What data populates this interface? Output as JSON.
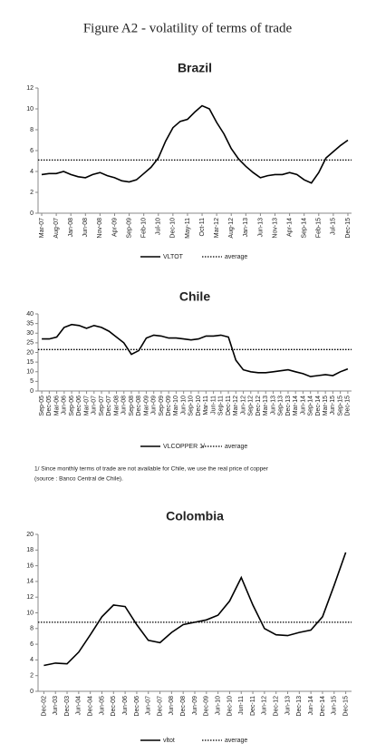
{
  "title": "Figure A2 - volatility of terms of trade",
  "note": [
    "1/ Since monthly terms of trade are not available for Chile, we use the real price of copper",
    "(source : Banco Central de Chile)."
  ],
  "chart_data": [
    {
      "type": "line",
      "title": "Brazil",
      "categories": [
        "Mar-07",
        null,
        "Aug-07",
        null,
        "Jan-08",
        null,
        "Jun-08",
        null,
        "Nov-08",
        null,
        "Apr-09",
        null,
        "Sep-09",
        null,
        "Feb-10",
        null,
        "Jul-10",
        null,
        "Dec-10",
        null,
        "May-11",
        null,
        "Oct-11",
        null,
        "Mar-12",
        null,
        "Aug-12",
        null,
        "Jan-13",
        null,
        "Jun-13",
        null,
        "Nov-13",
        null,
        "Apr-14",
        null,
        "Sep-14",
        null,
        "Feb-15",
        null,
        "Jul-15",
        null,
        "Dec-15"
      ],
      "series": [
        {
          "name": "VLTOT",
          "color": "#000000",
          "values": [
            3.7,
            3.8,
            3.8,
            4.0,
            3.7,
            3.5,
            3.4,
            3.7,
            3.9,
            3.6,
            3.4,
            3.1,
            3.0,
            3.2,
            3.8,
            4.4,
            5.3,
            6.9,
            8.2,
            8.8,
            9.0,
            9.7,
            10.3,
            10.0,
            8.7,
            7.6,
            6.2,
            5.2,
            4.5,
            3.9,
            3.4,
            3.6,
            3.7,
            3.7,
            3.9,
            3.7,
            3.2,
            2.9,
            3.9,
            5.3,
            5.9,
            6.5,
            7.0
          ]
        }
      ],
      "average": {
        "name": "average",
        "value": 5.1
      },
      "ylim": [
        0,
        12
      ],
      "yticks": [
        0,
        2,
        4,
        6,
        8,
        10,
        12
      ]
    },
    {
      "type": "line",
      "title": "Chile",
      "categories": [
        "Sep-05",
        "Dec-05",
        "Mar-06",
        "Jun-06",
        "Sep-06",
        "Dec-06",
        "Mar-07",
        "Jun-07",
        "Sep-07",
        "Dec-07",
        "Mar-08",
        "Jun-08",
        "Sep-08",
        "Dec-08",
        "Mar-09",
        "Jun-09",
        "Sep-09",
        "Dec-09",
        "Mar-10",
        "Jun-10",
        "Sep-10",
        "Dec-10",
        "Mar-11",
        "Jun-11",
        "Sep-11",
        "Dec-11",
        "Mar-12",
        "Jun-12",
        "Sep-12",
        "Dec-12",
        "Mar-13",
        "Jun-13",
        "Sep-13",
        "Dec-13",
        "Mar-14",
        "Jun-14",
        "Sep-14",
        "Dec-14",
        "Mar-15",
        "Jun-15",
        "Sep-15",
        "Dec-15"
      ],
      "series": [
        {
          "name": "VLCOPPER 1/",
          "color": "#000000",
          "values": [
            27,
            27,
            28,
            33,
            34.5,
            34,
            32.5,
            34,
            33,
            31,
            28,
            25,
            19,
            21,
            27.5,
            29,
            28.5,
            27.5,
            27.5,
            27,
            26.5,
            27,
            28.5,
            28.5,
            29,
            28,
            16,
            11,
            10,
            9.5,
            9.5,
            10,
            10.5,
            11,
            10,
            9,
            7.5,
            8,
            8.5,
            8,
            10,
            11.5
          ]
        }
      ],
      "average": {
        "name": "average",
        "value": 21.5
      },
      "ylim": [
        0,
        40
      ],
      "yticks": [
        0,
        5,
        10,
        15,
        20,
        25,
        30,
        35,
        40
      ]
    },
    {
      "type": "line",
      "title": "Colombia",
      "categories": [
        "Dec-02",
        "Jun-03",
        "Dec-03",
        "Jun-04",
        "Dec-04",
        "Jun-05",
        "Dec-05",
        "Jun-06",
        "Dec-06",
        "Jun-07",
        "Dec-07",
        "Jun-08",
        "Dec-08",
        "Jun-09",
        "Dec-09",
        "Jun-10",
        "Dec-10",
        "Jun-11",
        "Dec-11",
        "Jun-12",
        "Dec-12",
        "Jun-13",
        "Dec-13",
        "Jun-14",
        "Dec-14",
        "Jun-15",
        "Dec-15"
      ],
      "series": [
        {
          "name": "vltot",
          "color": "#000000",
          "values": [
            3.3,
            3.6,
            3.5,
            5.0,
            7.2,
            9.5,
            11.0,
            10.8,
            8.5,
            6.5,
            6.2,
            7.5,
            8.5,
            8.8,
            9.1,
            9.7,
            11.5,
            14.5,
            11.0,
            8.0,
            7.2,
            7.1,
            7.5,
            7.8,
            9.5,
            13.5,
            17.7
          ]
        }
      ],
      "average": {
        "name": "average",
        "value": 8.8
      },
      "ylim": [
        0,
        20
      ],
      "yticks": [
        0,
        2,
        4,
        6,
        8,
        10,
        12,
        14,
        16,
        18,
        20
      ]
    }
  ]
}
